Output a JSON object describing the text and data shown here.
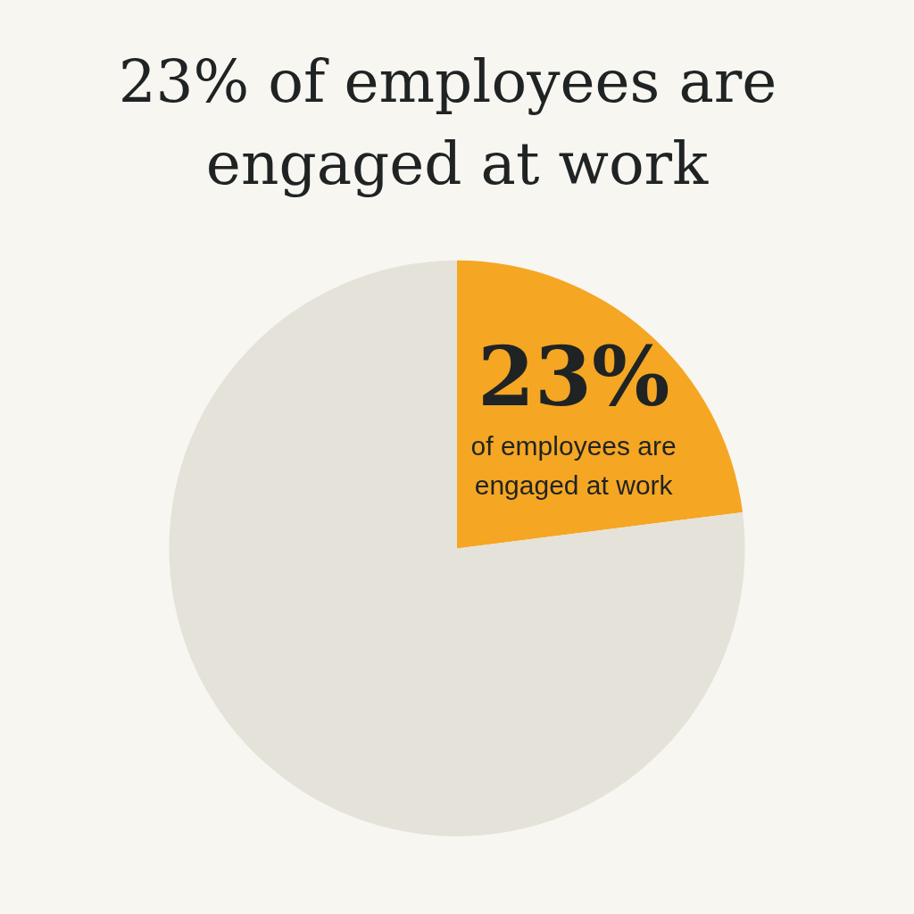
{
  "chart_data": {
    "type": "pie",
    "title": "23% of employees are engaged at work",
    "categories": [
      "of employees are engaged at work",
      null
    ],
    "values": [
      23,
      77
    ],
    "colors": [
      "#f5a623",
      "#e5e2da"
    ],
    "value_labels": [
      "23%",
      null
    ],
    "legend": false
  }
}
